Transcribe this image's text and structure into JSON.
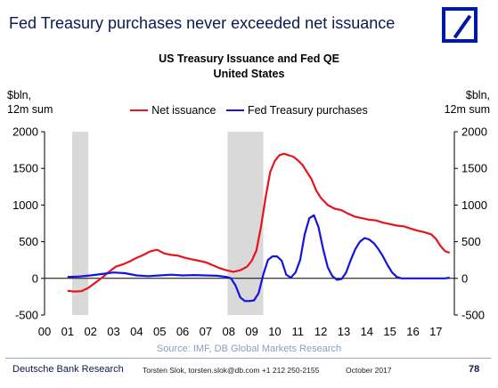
{
  "slide": {
    "title": "Fed Treasury purchases never exceeded net issuance"
  },
  "logo": {
    "name": "deutsche-bank-logo"
  },
  "footer": {
    "org": "Deutsche Bank Research",
    "contact": "Torsten Slok, torsten.slok@db.com +1 212 250-2155",
    "date": "October  2017",
    "page": "78"
  },
  "chart_data": {
    "type": "line",
    "title": "US Treasury Issuance and Fed QE",
    "subtitle": "United States",
    "ylabel_left": "$bln,\n12m sum",
    "ylabel_right": "$bln,\n12m sum",
    "source": "Source: IMF, DB Global Markets Research",
    "ylim": [
      -500,
      2000
    ],
    "y_ticks": [
      -500,
      0,
      500,
      1000,
      1500,
      2000
    ],
    "xlim": [
      2000,
      2017.8
    ],
    "x_tick_labels": [
      "00",
      "01",
      "02",
      "03",
      "04",
      "05",
      "06",
      "07",
      "08",
      "09",
      "10",
      "11",
      "12",
      "13",
      "14",
      "15",
      "16",
      "17"
    ],
    "legend_position": "top-center",
    "recessions": [
      [
        2001.2,
        2001.9
      ],
      [
        2007.95,
        2009.5
      ]
    ],
    "colors": {
      "net": "#e8141c",
      "fed": "#1414e0",
      "recession": "#d9d9d9",
      "axis": "#000000"
    },
    "series": [
      {
        "name": "Net issuance",
        "color": "#e8141c",
        "x": [
          2001.0,
          2001.3,
          2001.6,
          2001.9,
          2002.2,
          2002.5,
          2002.8,
          2003.1,
          2003.4,
          2003.7,
          2004.0,
          2004.3,
          2004.6,
          2004.9,
          2005.2,
          2005.5,
          2005.8,
          2006.1,
          2006.4,
          2006.7,
          2007.0,
          2007.3,
          2007.6,
          2007.9,
          2008.2,
          2008.5,
          2008.8,
          2009.0,
          2009.2,
          2009.4,
          2009.6,
          2009.8,
          2010.0,
          2010.2,
          2010.4,
          2010.6,
          2010.8,
          2011.0,
          2011.2,
          2011.4,
          2011.6,
          2011.8,
          2012.0,
          2012.3,
          2012.6,
          2012.9,
          2013.2,
          2013.5,
          2013.8,
          2014.1,
          2014.4,
          2014.7,
          2015.0,
          2015.3,
          2015.6,
          2015.9,
          2016.2,
          2016.5,
          2016.8,
          2017.0,
          2017.2,
          2017.4,
          2017.6
        ],
        "values": [
          -170,
          -180,
          -175,
          -130,
          -60,
          10,
          90,
          160,
          190,
          230,
          280,
          320,
          370,
          390,
          340,
          320,
          310,
          280,
          260,
          240,
          220,
          180,
          140,
          110,
          90,
          110,
          160,
          240,
          380,
          700,
          1100,
          1450,
          1600,
          1680,
          1700,
          1680,
          1660,
          1610,
          1550,
          1450,
          1350,
          1200,
          1100,
          1000,
          950,
          930,
          880,
          840,
          820,
          800,
          790,
          760,
          740,
          720,
          710,
          680,
          650,
          630,
          600,
          540,
          440,
          370,
          350
        ]
      },
      {
        "name": "Fed Treasury purchases",
        "color": "#1414e0",
        "x": [
          2001.0,
          2001.5,
          2002.0,
          2002.5,
          2003.0,
          2003.5,
          2004.0,
          2004.5,
          2005.0,
          2005.5,
          2006.0,
          2006.5,
          2007.0,
          2007.5,
          2007.9,
          2008.1,
          2008.3,
          2008.5,
          2008.7,
          2008.9,
          2009.1,
          2009.3,
          2009.5,
          2009.7,
          2009.9,
          2010.1,
          2010.3,
          2010.5,
          2010.7,
          2010.9,
          2011.1,
          2011.3,
          2011.5,
          2011.7,
          2011.9,
          2012.1,
          2012.3,
          2012.5,
          2012.7,
          2012.9,
          2013.1,
          2013.3,
          2013.5,
          2013.7,
          2013.9,
          2014.1,
          2014.3,
          2014.5,
          2014.7,
          2014.9,
          2015.1,
          2015.3,
          2015.5,
          2015.8,
          2016.2,
          2016.6,
          2017.0,
          2017.4,
          2017.6
        ],
        "values": [
          20,
          25,
          40,
          60,
          80,
          70,
          40,
          30,
          40,
          50,
          40,
          45,
          40,
          35,
          20,
          0,
          -100,
          -260,
          -310,
          -310,
          -300,
          -200,
          50,
          250,
          300,
          300,
          240,
          50,
          10,
          80,
          250,
          600,
          820,
          860,
          700,
          400,
          150,
          30,
          -20,
          -10,
          80,
          250,
          400,
          500,
          550,
          530,
          480,
          400,
          300,
          180,
          80,
          20,
          0,
          0,
          0,
          0,
          0,
          0,
          10
        ]
      }
    ]
  }
}
